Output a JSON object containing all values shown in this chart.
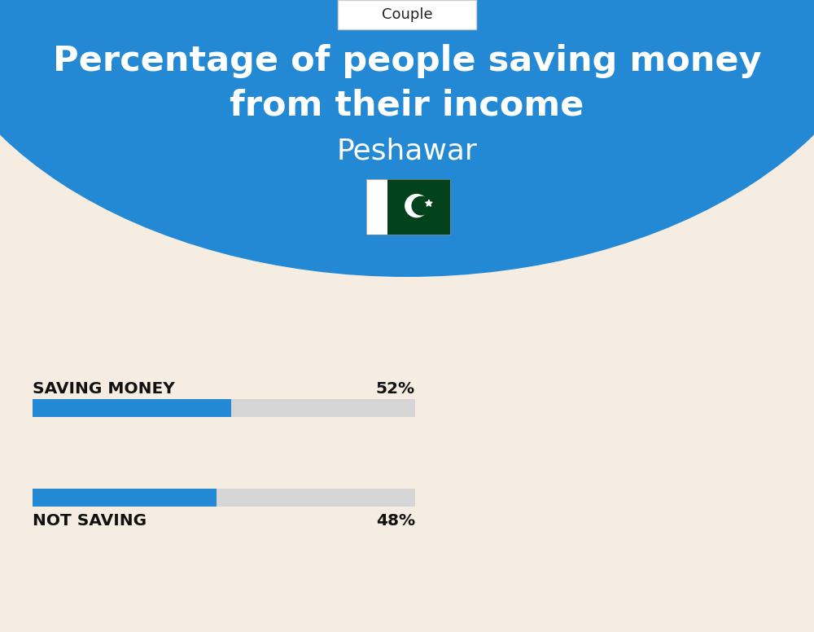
{
  "title_line1": "Percentage of people saving money",
  "title_line2": "from their income",
  "subtitle": "Peshawar",
  "tab_label": "Couple",
  "bg_top_color": "#2389d4",
  "bg_bottom_color": "#f5ece2",
  "bar_label_1": "SAVING MONEY",
  "bar_value_1": 52,
  "bar_label_2": "NOT SAVING",
  "bar_value_2": 48,
  "bar_filled_color": "#2389d4",
  "bar_empty_color": "#d5d5d5",
  "title_color": "#ffffff",
  "subtitle_color": "#ffffff",
  "tab_color": "#222222",
  "bar_text_color": "#111111",
  "figure_width": 10.0,
  "figure_height": 7.76
}
